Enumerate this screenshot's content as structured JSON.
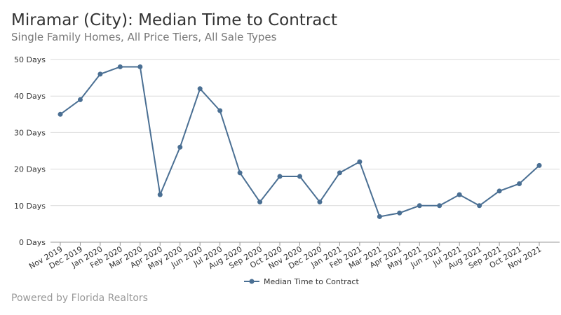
{
  "title": "Miramar (City): Median Time to Contract",
  "subtitle": "Single Family Homes, All Price Tiers, All Sale Types",
  "footer": "Powered by Florida Realtors",
  "chart_data": {
    "type": "line",
    "title": "Miramar (City): Median Time to Contract",
    "subtitle": "Single Family Homes, All Price Tiers, All Sale Types",
    "categories": [
      "Nov 2019",
      "Dec 2019",
      "Jan 2020",
      "Feb 2020",
      "Mar 2020",
      "Apr 2020",
      "May 2020",
      "Jun 2020",
      "Jul 2020",
      "Aug 2020",
      "Sep 2020",
      "Oct 2020",
      "Nov 2020",
      "Dec 2020",
      "Jan 2021",
      "Feb 2021",
      "Mar 2021",
      "Apr 2021",
      "May 2021",
      "Jun 2021",
      "Jul 2021",
      "Aug 2021",
      "Sep 2021",
      "Oct 2021",
      "Nov 2021"
    ],
    "series": [
      {
        "name": "Median Time to Contract",
        "color": "#4a6f93",
        "values": [
          35,
          39,
          46,
          48,
          48,
          13,
          26,
          42,
          36,
          19,
          11,
          18,
          18,
          11,
          19,
          22,
          7,
          8,
          10,
          10,
          13,
          10,
          14,
          16,
          21
        ]
      }
    ],
    "ylim": [
      0,
      50
    ],
    "yticks": [
      0,
      10,
      20,
      30,
      40,
      50
    ],
    "ytick_labels": [
      "0 Days",
      "10 Days",
      "20 Days",
      "30 Days",
      "40 Days",
      "50 Days"
    ],
    "grid": true,
    "legend": "bottom-center"
  }
}
